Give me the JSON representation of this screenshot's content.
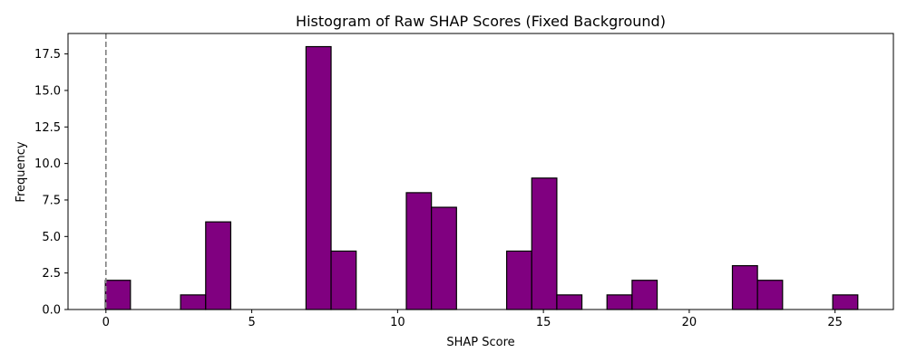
{
  "chart_data": {
    "type": "bar",
    "title": "Histogram of Raw SHAP Scores (Fixed Background)",
    "xlabel": "SHAP Score",
    "ylabel": "Frequency",
    "xlim": [
      -1.3,
      27.0
    ],
    "ylim": [
      0,
      18.9
    ],
    "xticks": [
      0,
      5,
      10,
      15,
      20,
      25
    ],
    "xtick_labels": [
      "0",
      "5",
      "10",
      "15",
      "20",
      "25"
    ],
    "yticks": [
      0,
      2.5,
      5,
      7.5,
      10,
      12.5,
      15,
      17.5
    ],
    "ytick_labels": [
      "0.0",
      "2.5",
      "5.0",
      "7.5",
      "10.0",
      "12.5",
      "15.0",
      "17.5"
    ],
    "bins": [
      {
        "start": -0.02,
        "end": 0.84,
        "count": 2
      },
      {
        "start": 0.84,
        "end": 1.7,
        "count": 0
      },
      {
        "start": 1.7,
        "end": 2.56,
        "count": 0
      },
      {
        "start": 2.56,
        "end": 3.42,
        "count": 1
      },
      {
        "start": 3.42,
        "end": 4.28,
        "count": 6
      },
      {
        "start": 4.28,
        "end": 5.14,
        "count": 0
      },
      {
        "start": 5.14,
        "end": 6.0,
        "count": 0
      },
      {
        "start": 6.0,
        "end": 6.86,
        "count": 0
      },
      {
        "start": 6.86,
        "end": 7.72,
        "count": 18
      },
      {
        "start": 7.72,
        "end": 8.58,
        "count": 4
      },
      {
        "start": 8.58,
        "end": 9.44,
        "count": 0
      },
      {
        "start": 9.44,
        "end": 10.3,
        "count": 0
      },
      {
        "start": 10.3,
        "end": 11.16,
        "count": 8
      },
      {
        "start": 11.16,
        "end": 12.02,
        "count": 7
      },
      {
        "start": 12.02,
        "end": 12.88,
        "count": 0
      },
      {
        "start": 12.88,
        "end": 13.74,
        "count": 0
      },
      {
        "start": 13.74,
        "end": 14.6,
        "count": 4
      },
      {
        "start": 14.6,
        "end": 15.46,
        "count": 9
      },
      {
        "start": 15.46,
        "end": 16.32,
        "count": 1
      },
      {
        "start": 16.32,
        "end": 17.18,
        "count": 0
      },
      {
        "start": 17.18,
        "end": 18.04,
        "count": 1
      },
      {
        "start": 18.04,
        "end": 18.9,
        "count": 2
      },
      {
        "start": 18.9,
        "end": 19.76,
        "count": 0
      },
      {
        "start": 19.76,
        "end": 20.62,
        "count": 0
      },
      {
        "start": 20.62,
        "end": 21.48,
        "count": 0
      },
      {
        "start": 21.48,
        "end": 22.34,
        "count": 3
      },
      {
        "start": 22.34,
        "end": 23.2,
        "count": 2
      },
      {
        "start": 23.2,
        "end": 24.06,
        "count": 0
      },
      {
        "start": 24.06,
        "end": 24.92,
        "count": 0
      },
      {
        "start": 24.92,
        "end": 25.78,
        "count": 1
      }
    ],
    "reference_line": {
      "x": 0,
      "style": "dashed",
      "color": "#808080"
    },
    "bar_color": "#800080",
    "edge_color": "#000000",
    "grid": false,
    "legend": "none"
  }
}
